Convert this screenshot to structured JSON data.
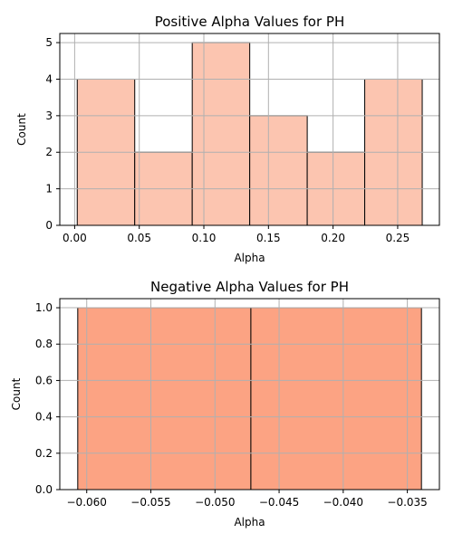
{
  "chart_data": [
    {
      "type": "bar",
      "title": "Positive Alpha Values for PH",
      "xlabel": "Alpha",
      "ylabel": "Count",
      "color": "#fcc5b0",
      "bins": [
        {
          "start": 0.002,
          "end": 0.0465,
          "count": 4
        },
        {
          "start": 0.0465,
          "end": 0.091,
          "count": 2
        },
        {
          "start": 0.091,
          "end": 0.1355,
          "count": 5
        },
        {
          "start": 0.1355,
          "end": 0.18,
          "count": 3
        },
        {
          "start": 0.18,
          "end": 0.2245,
          "count": 2
        },
        {
          "start": 0.2245,
          "end": 0.269,
          "count": 4
        }
      ],
      "xlim": [
        -0.0115,
        0.2823
      ],
      "ylim": [
        0,
        5.25
      ],
      "x_ticks": [
        0.0,
        0.05,
        0.1,
        0.15,
        0.2,
        0.25
      ],
      "x_tick_labels": [
        "0.00",
        "0.05",
        "0.10",
        "0.15",
        "0.20",
        "0.25"
      ],
      "y_ticks": [
        0,
        1,
        2,
        3,
        4,
        5
      ],
      "y_tick_labels": [
        "0",
        "1",
        "2",
        "3",
        "4",
        "5"
      ],
      "grid": true
    },
    {
      "type": "bar",
      "title": "Negative Alpha Values for PH",
      "xlabel": "Alpha",
      "ylabel": "Count",
      "color": "#fca383",
      "bins": [
        {
          "start": -0.0607,
          "end": -0.0472,
          "count": 1
        },
        {
          "start": -0.0472,
          "end": -0.0339,
          "count": 1
        }
      ],
      "xlim": [
        -0.0621,
        -0.0325
      ],
      "ylim": [
        0,
        1.05
      ],
      "x_ticks": [
        -0.06,
        -0.055,
        -0.05,
        -0.045,
        -0.04,
        -0.035
      ],
      "x_tick_labels": [
        "−0.060",
        "−0.055",
        "−0.050",
        "−0.045",
        "−0.040",
        "−0.035"
      ],
      "y_ticks": [
        0,
        0.2,
        0.4,
        0.6,
        0.8,
        1.0
      ],
      "y_tick_labels": [
        "0.0",
        "0.2",
        "0.4",
        "0.6",
        "0.8",
        "1.0"
      ],
      "grid": true
    }
  ]
}
